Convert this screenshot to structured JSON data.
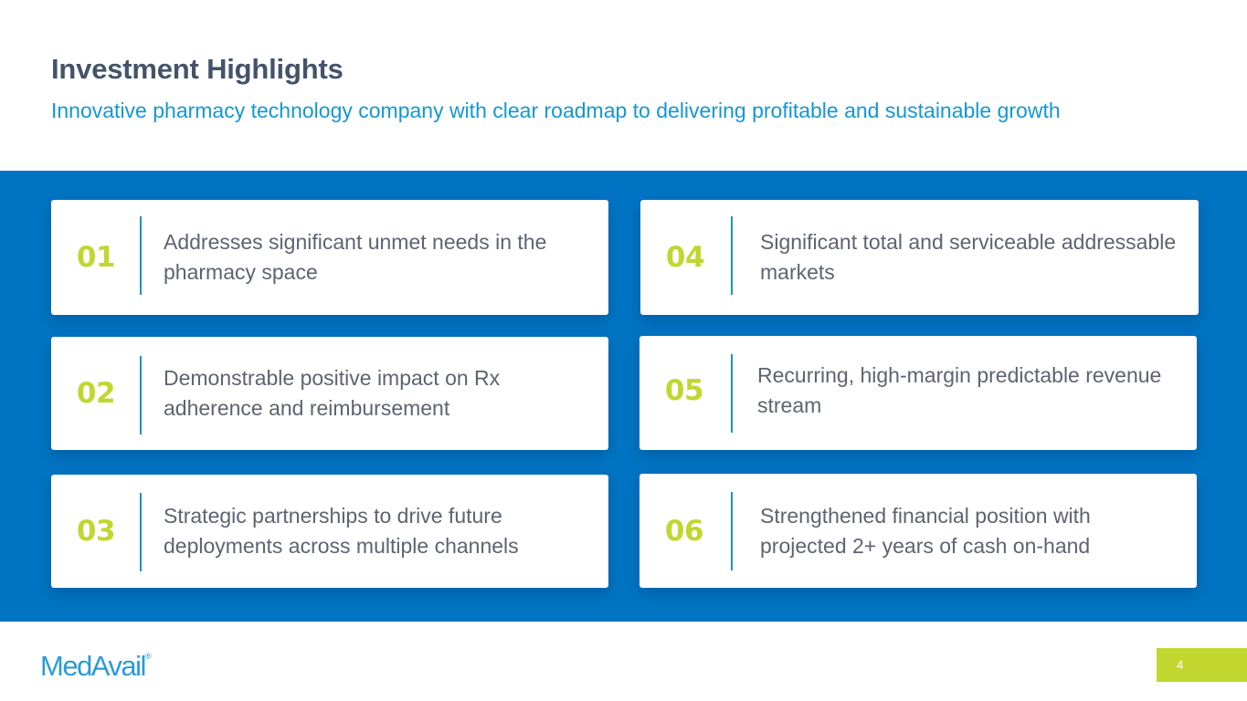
{
  "header": {
    "title": "Investment Highlights",
    "subtitle": "Innovative pharmacy technology company with clear roadmap to delivering profitable and sustainable growth"
  },
  "highlights": [
    {
      "number": "01",
      "text": "Addresses significant unmet needs in the pharmacy space"
    },
    {
      "number": "02",
      "text": "Demonstrable positive impact on Rx adherence and reimbursement"
    },
    {
      "number": "03",
      "text": "Strategic partnerships to drive future deployments across multiple channels"
    },
    {
      "number": "04",
      "text": "Significant total and serviceable addressable markets"
    },
    {
      "number": "05",
      "text": "Recurring, high-margin predictable revenue stream"
    },
    {
      "number": "06",
      "text": "Strengthened financial position with projected 2+ years of cash on-hand"
    }
  ],
  "footer": {
    "logo_text": "MedAvail",
    "logo_mark": "®",
    "page_number": "4"
  },
  "colors": {
    "title": "#45536a",
    "subtitle": "#1497d5",
    "band": "#0074c3",
    "number_accent": "#bfd730",
    "divider": "#1e8fd4",
    "body_text": "#5d6470",
    "logo": "#2a9bd8",
    "page_tag": "#c2d72f"
  }
}
